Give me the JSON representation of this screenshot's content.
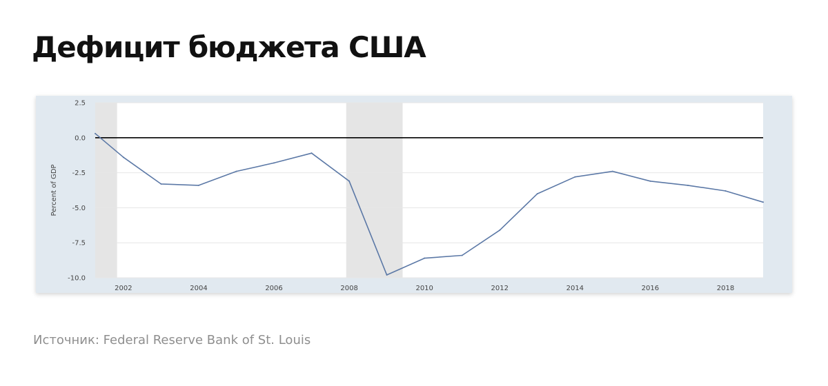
{
  "page": {
    "title": "Дефицит бюджета США",
    "source": "Источник: Federal Reserve Bank of St. Louis"
  },
  "chart_data": {
    "type": "line",
    "title": "",
    "xlabel": "",
    "ylabel": "Percent of GDP",
    "xlim": [
      2001.25,
      2019.0
    ],
    "ylim": [
      -10.0,
      2.5
    ],
    "yticks": [
      2.5,
      0.0,
      -2.5,
      -5.0,
      -7.5,
      -10.0
    ],
    "ytick_labels": [
      "2.5",
      "0.0",
      "-2.5",
      "-5.0",
      "-7.5",
      "-10.0"
    ],
    "xticks": [
      2002,
      2004,
      2006,
      2008,
      2010,
      2012,
      2014,
      2016,
      2018
    ],
    "xtick_labels": [
      "2002",
      "2004",
      "2006",
      "2008",
      "2010",
      "2012",
      "2014",
      "2016",
      "2018"
    ],
    "grid": true,
    "legend": "none",
    "zero_line": 0.0,
    "recession_bands": [
      [
        2001.25,
        2001.83
      ],
      [
        2007.92,
        2009.42
      ]
    ],
    "series": [
      {
        "x": [
          2001.25,
          2002,
          2003,
          2004,
          2005,
          2006,
          2007,
          2008,
          2009,
          2010,
          2011,
          2012,
          2013,
          2014,
          2015,
          2016,
          2017,
          2018,
          2019
        ],
        "y": [
          0.3,
          -1.4,
          -3.3,
          -3.4,
          -2.4,
          -1.8,
          -1.1,
          -3.1,
          -9.8,
          -8.6,
          -8.4,
          -6.6,
          -4.0,
          -2.8,
          -2.4,
          -3.1,
          -3.4,
          -3.8,
          -4.6
        ],
        "color": "#5b78a6"
      }
    ],
    "colors": {
      "card_background": "#e1e9f0",
      "plot_background": "#ffffff",
      "recession": "#e5e5e5",
      "grid": "#e6e6e6",
      "zero_line": "#000000"
    }
  }
}
